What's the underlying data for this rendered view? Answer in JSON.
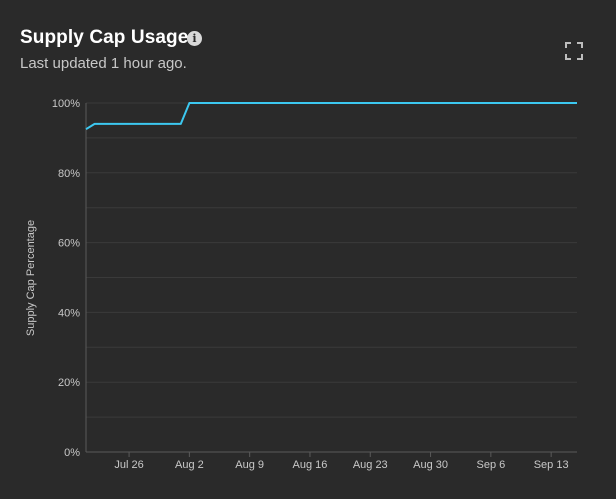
{
  "header": {
    "title": "Supply Cap Usage",
    "info_icon": "info-icon",
    "subtitle": "Last updated 1 hour ago.",
    "expand_icon": "expand-icon"
  },
  "colors": {
    "background": "#2a2a2a",
    "line": "#3cc8f0",
    "grid": "#3a3a3a",
    "text_muted": "#c8c8c8"
  },
  "chart_data": {
    "type": "line",
    "title": "",
    "xlabel": "",
    "ylabel": "Supply Cap Percentage",
    "ylim": [
      0,
      100
    ],
    "xlim": [
      "2024-07-21",
      "2024-09-16"
    ],
    "y_ticks": [
      0,
      20,
      40,
      60,
      80,
      100
    ],
    "y_tick_labels": [
      "0%",
      "20%",
      "40%",
      "60%",
      "80%",
      "100%"
    ],
    "x_ticks": [
      "2024-07-26",
      "2024-08-02",
      "2024-08-09",
      "2024-08-16",
      "2024-08-23",
      "2024-08-30",
      "2024-09-06",
      "2024-09-13"
    ],
    "x_tick_labels": [
      "Jul 26",
      "Aug 2",
      "Aug 9",
      "Aug 16",
      "Aug 23",
      "Aug 30",
      "Sep 6",
      "Sep 13"
    ],
    "grid": true,
    "series": [
      {
        "x": [
          "2024-07-21",
          "2024-07-22",
          "2024-08-01",
          "2024-08-02",
          "2024-09-16"
        ],
        "y": [
          92.5,
          94,
          94,
          100,
          100
        ]
      }
    ]
  }
}
